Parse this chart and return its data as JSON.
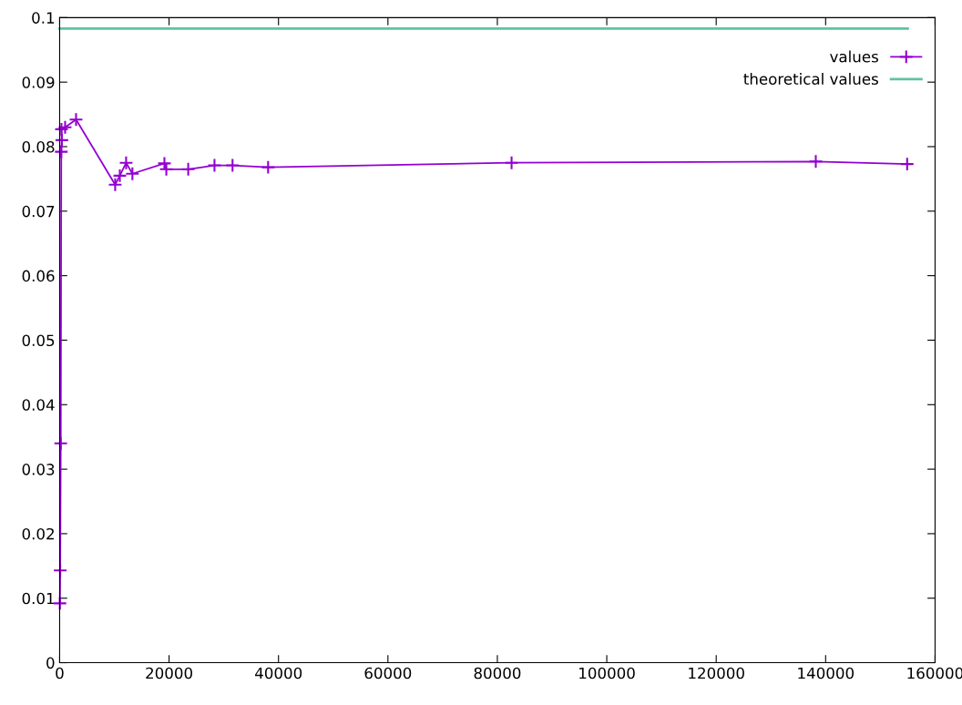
{
  "chart_data": {
    "type": "line",
    "xlim": [
      0,
      160000
    ],
    "ylim": [
      0,
      0.1
    ],
    "xticks": [
      0,
      20000,
      40000,
      60000,
      80000,
      100000,
      120000,
      140000,
      160000
    ],
    "yticks": [
      0,
      0.01,
      0.02,
      0.03,
      0.04,
      0.05,
      0.06,
      0.07,
      0.08,
      0.09,
      0.1
    ],
    "grid": false,
    "legend": "top right",
    "series": [
      {
        "name": "values",
        "color": "#9400d3",
        "marker": "cross",
        "x": [
          50,
          100,
          200,
          300,
          400,
          333,
          1000,
          3000,
          10150,
          11000,
          12150,
          13300,
          19150,
          19500,
          23500,
          28300,
          31600,
          38100,
          82600,
          138200,
          154900
        ],
        "values": [
          0.0092,
          0.0143,
          0.034,
          0.0792,
          0.081,
          0.0827,
          0.083,
          0.0842,
          0.0741,
          0.0755,
          0.0775,
          0.0758,
          0.0774,
          0.0765,
          0.0765,
          0.0771,
          0.0771,
          0.0768,
          0.0775,
          0.0777,
          0.0773
        ]
      },
      {
        "name": "theoretical values",
        "color": "#5fc3a5",
        "marker": "none",
        "x": [
          0,
          155000
        ],
        "values": [
          0.0983,
          0.0983
        ]
      }
    ]
  }
}
